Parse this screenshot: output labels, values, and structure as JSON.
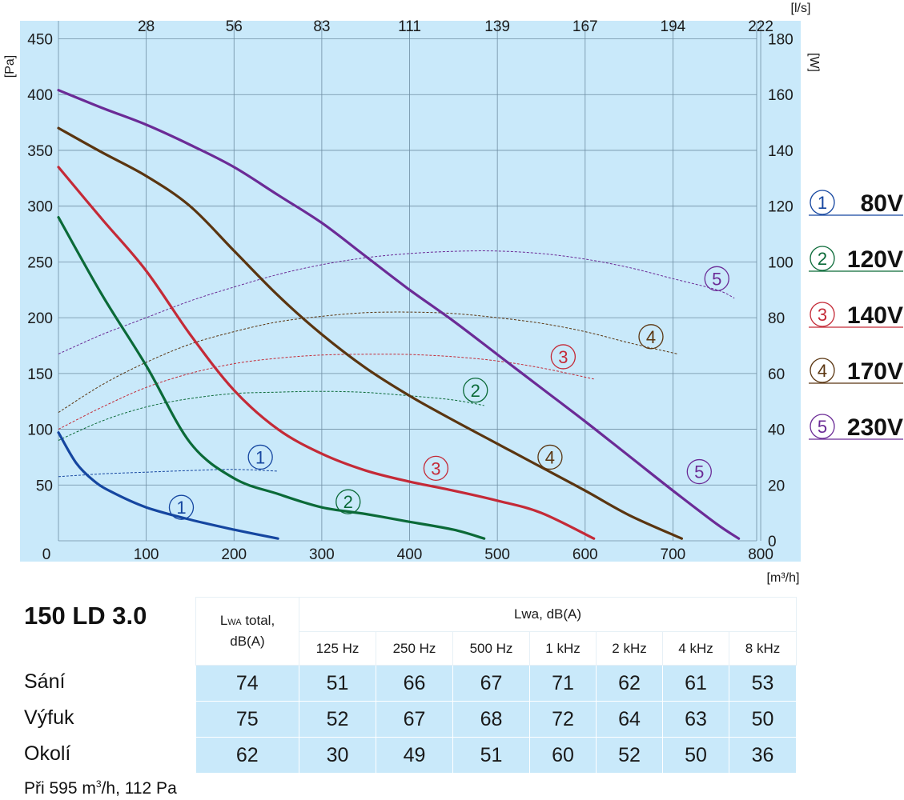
{
  "chart_data": {
    "type": "line",
    "title": "",
    "xlabel": "m³/h",
    "x2label": "l/s",
    "ylabel": "Pa",
    "y2label": "W",
    "xlim": [
      0,
      840
    ],
    "ylim": [
      0,
      450
    ],
    "y2lim": [
      0,
      180
    ],
    "xticks": [
      0,
      100,
      200,
      300,
      400,
      500,
      600,
      700,
      800
    ],
    "yticks": [
      50,
      100,
      150,
      200,
      250,
      300,
      350,
      400,
      450
    ],
    "y2ticks": [
      0,
      20,
      40,
      60,
      80,
      100,
      120,
      140,
      160,
      180
    ],
    "x2ticks": [
      {
        "label": "28",
        "x": 100
      },
      {
        "label": "56",
        "x": 200
      },
      {
        "label": "83",
        "x": 300
      },
      {
        "label": "111",
        "x": 400
      },
      {
        "label": "139",
        "x": 500
      },
      {
        "label": "167",
        "x": 600
      },
      {
        "label": "194",
        "x": 700
      },
      {
        "label": "222",
        "x": 800
      }
    ],
    "grid": true,
    "legend_position": "right",
    "series": [
      {
        "name": "80V",
        "badge": "1",
        "color": "#1546a0",
        "pressure": [
          [
            0,
            97
          ],
          [
            20,
            70
          ],
          [
            40,
            54
          ],
          [
            60,
            44
          ],
          [
            100,
            30
          ],
          [
            150,
            19
          ],
          [
            200,
            10
          ],
          [
            250,
            2
          ]
        ],
        "power": [
          [
            0,
            23
          ],
          [
            50,
            24
          ],
          [
            100,
            24.6
          ],
          [
            150,
            25.2
          ],
          [
            200,
            25.6
          ],
          [
            250,
            25
          ]
        ]
      },
      {
        "name": "120V",
        "badge": "2",
        "color": "#0b6a38",
        "pressure": [
          [
            0,
            290
          ],
          [
            50,
            220
          ],
          [
            100,
            157
          ],
          [
            150,
            88
          ],
          [
            200,
            56
          ],
          [
            250,
            42
          ],
          [
            300,
            30
          ],
          [
            350,
            24
          ],
          [
            400,
            17
          ],
          [
            450,
            10
          ],
          [
            485,
            2
          ]
        ],
        "power": [
          [
            0,
            36
          ],
          [
            50,
            43
          ],
          [
            100,
            48
          ],
          [
            150,
            51
          ],
          [
            200,
            52.8
          ],
          [
            250,
            53.3
          ],
          [
            300,
            53.6
          ],
          [
            350,
            53.2
          ],
          [
            400,
            52
          ],
          [
            450,
            50.5
          ],
          [
            485,
            48.5
          ]
        ]
      },
      {
        "name": "140V",
        "badge": "3",
        "color": "#c42a37",
        "pressure": [
          [
            0,
            335
          ],
          [
            50,
            288
          ],
          [
            100,
            242
          ],
          [
            150,
            185
          ],
          [
            200,
            135
          ],
          [
            250,
            100
          ],
          [
            300,
            78
          ],
          [
            350,
            63
          ],
          [
            400,
            53
          ],
          [
            450,
            45
          ],
          [
            500,
            36
          ],
          [
            550,
            25
          ],
          [
            610,
            2
          ]
        ],
        "power": [
          [
            0,
            40
          ],
          [
            50,
            48
          ],
          [
            100,
            55
          ],
          [
            150,
            60
          ],
          [
            200,
            63.5
          ],
          [
            250,
            65.5
          ],
          [
            300,
            66.6
          ],
          [
            350,
            66.9
          ],
          [
            400,
            66.8
          ],
          [
            450,
            66
          ],
          [
            500,
            64.5
          ],
          [
            550,
            62
          ],
          [
            610,
            58
          ]
        ]
      },
      {
        "name": "170V",
        "badge": "4",
        "color": "#5a3510",
        "pressure": [
          [
            0,
            370
          ],
          [
            50,
            348
          ],
          [
            100,
            327
          ],
          [
            150,
            300
          ],
          [
            200,
            260
          ],
          [
            250,
            220
          ],
          [
            300,
            185
          ],
          [
            350,
            155
          ],
          [
            400,
            130
          ],
          [
            450,
            108
          ],
          [
            500,
            87
          ],
          [
            550,
            66
          ],
          [
            600,
            45
          ],
          [
            650,
            23
          ],
          [
            710,
            2
          ]
        ],
        "power": [
          [
            0,
            46
          ],
          [
            50,
            56
          ],
          [
            100,
            64
          ],
          [
            150,
            70.5
          ],
          [
            200,
            75
          ],
          [
            250,
            78.5
          ],
          [
            300,
            80.5
          ],
          [
            350,
            81.8
          ],
          [
            400,
            82
          ],
          [
            450,
            81.5
          ],
          [
            500,
            80
          ],
          [
            550,
            78
          ],
          [
            600,
            75
          ],
          [
            650,
            71
          ],
          [
            705,
            67
          ]
        ]
      },
      {
        "name": "230V",
        "badge": "5",
        "color": "#6b2b96",
        "pressure": [
          [
            0,
            404
          ],
          [
            50,
            388
          ],
          [
            100,
            373
          ],
          [
            150,
            355
          ],
          [
            200,
            335
          ],
          [
            250,
            310
          ],
          [
            300,
            285
          ],
          [
            350,
            255
          ],
          [
            400,
            225
          ],
          [
            450,
            197
          ],
          [
            500,
            167
          ],
          [
            550,
            137
          ],
          [
            600,
            107
          ],
          [
            650,
            76
          ],
          [
            700,
            45
          ],
          [
            750,
            15
          ],
          [
            775,
            2
          ]
        ],
        "power": [
          [
            0,
            67
          ],
          [
            50,
            74
          ],
          [
            100,
            80
          ],
          [
            150,
            86
          ],
          [
            200,
            91
          ],
          [
            250,
            95.5
          ],
          [
            300,
            99
          ],
          [
            350,
            101.5
          ],
          [
            400,
            103
          ],
          [
            450,
            103.8
          ],
          [
            500,
            103.9
          ],
          [
            550,
            103
          ],
          [
            600,
            101
          ],
          [
            650,
            98
          ],
          [
            700,
            94
          ],
          [
            750,
            90
          ],
          [
            770,
            87
          ]
        ]
      }
    ],
    "curve_badges": [
      {
        "badge": "1",
        "x": 140,
        "y": 30,
        "color": "#1546a0"
      },
      {
        "badge": "1",
        "x": 230,
        "y": 75,
        "color": "#1546a0"
      },
      {
        "badge": "2",
        "x": 330,
        "y": 35,
        "color": "#0b6a38"
      },
      {
        "badge": "2",
        "x": 475,
        "y": 135,
        "color": "#0b6a38"
      },
      {
        "badge": "3",
        "x": 430,
        "y": 65,
        "color": "#c42a37"
      },
      {
        "badge": "3",
        "x": 575,
        "y": 165,
        "color": "#c42a37"
      },
      {
        "badge": "4",
        "x": 560,
        "y": 75,
        "color": "#5a3510"
      },
      {
        "badge": "4",
        "x": 675,
        "y": 183,
        "color": "#5a3510"
      },
      {
        "badge": "5",
        "x": 730,
        "y": 62,
        "color": "#6b2b96"
      },
      {
        "badge": "5",
        "x": 750,
        "y": 235,
        "color": "#6b2b96"
      }
    ]
  },
  "colors": {
    "plot_bg": "#c9e9fa",
    "grid": "#6f8ea3",
    "table_cell": "#c9e9fa"
  },
  "model": "150 LD 3.0",
  "table": {
    "total_header_prefix": "L",
    "total_header_sub": "WA",
    "total_header_suffix": " total,",
    "total_header_line2": "dB(A)",
    "group_header": "Lwa, dB(A)",
    "bands": [
      "125 Hz",
      "250 Hz",
      "500 Hz",
      "1 kHz",
      "2 kHz",
      "4 kHz",
      "8 kHz"
    ],
    "rows": [
      {
        "label": "Sání",
        "total": "74",
        "values": [
          "51",
          "66",
          "67",
          "71",
          "62",
          "61",
          "53"
        ]
      },
      {
        "label": "Výfuk",
        "total": "75",
        "values": [
          "52",
          "67",
          "68",
          "72",
          "64",
          "63",
          "50"
        ]
      },
      {
        "label": "Okolí",
        "total": "62",
        "values": [
          "30",
          "49",
          "51",
          "60",
          "52",
          "50",
          "36"
        ]
      }
    ]
  },
  "footnote": {
    "prefix": "Při 595 m",
    "sup": "3",
    "suffix": "/h, 112 Pa"
  }
}
